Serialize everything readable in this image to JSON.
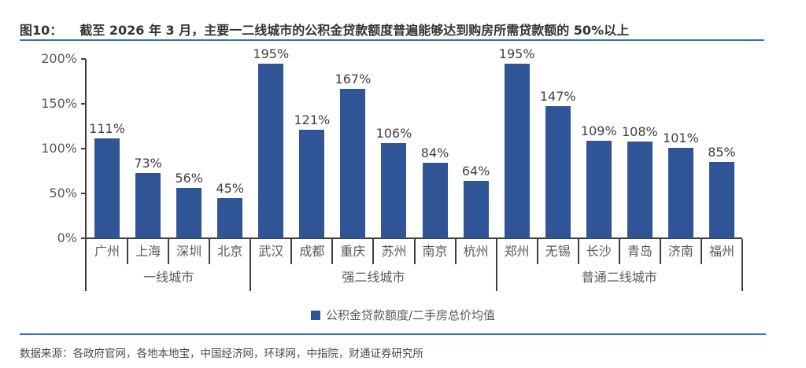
{
  "title": {
    "prefix": "图10：",
    "text": "截至 2026 年 3 月，主要一二线城市的公积金贷款额度普遍能够达到购房所需贷款额的 50%以上"
  },
  "legend": {
    "label": "公积金贷款额度/二手房总价均值",
    "marker_color": "#2F5597"
  },
  "source": "数据来源：各政府官网，各地本地宝，中国经济网，环球网，中指院，财通证券研究所",
  "colors": {
    "bar": "#2F5597",
    "accent_line": "#2E75B6",
    "axis": "#404040",
    "label_text": "#595959"
  },
  "chart_data": {
    "type": "bar",
    "title": "截至 2026 年 3 月，主要一二线城市的公积金贷款额度普遍能够达到购房所需贷款额的 50%以上",
    "categories": [
      "广州",
      "上海",
      "深圳",
      "北京",
      "武汉",
      "成都",
      "重庆",
      "苏州",
      "南京",
      "杭州",
      "郑州",
      "无锡",
      "长沙",
      "青岛",
      "济南",
      "福州"
    ],
    "values": [
      111,
      73,
      56,
      45,
      195,
      121,
      167,
      106,
      84,
      64,
      195,
      147,
      109,
      108,
      101,
      85
    ],
    "value_suffix": "%",
    "groups": [
      {
        "label": "一线城市",
        "count": 4
      },
      {
        "label": "强二线城市",
        "count": 6
      },
      {
        "label": "普通二线城市",
        "count": 6
      }
    ],
    "xlabel": "",
    "ylabel": "",
    "ylim": [
      0,
      200
    ],
    "y_ticks": [
      {
        "label": "200%",
        "value": 200
      },
      {
        "label": "150%",
        "value": 150
      },
      {
        "label": "100%",
        "value": 100
      },
      {
        "label": "50%",
        "value": 50
      },
      {
        "label": "0%",
        "value": 0
      }
    ],
    "grid": false,
    "legend_entries": [
      "公积金贷款额度/二手房总价均值"
    ],
    "legend_position": "bottom"
  }
}
